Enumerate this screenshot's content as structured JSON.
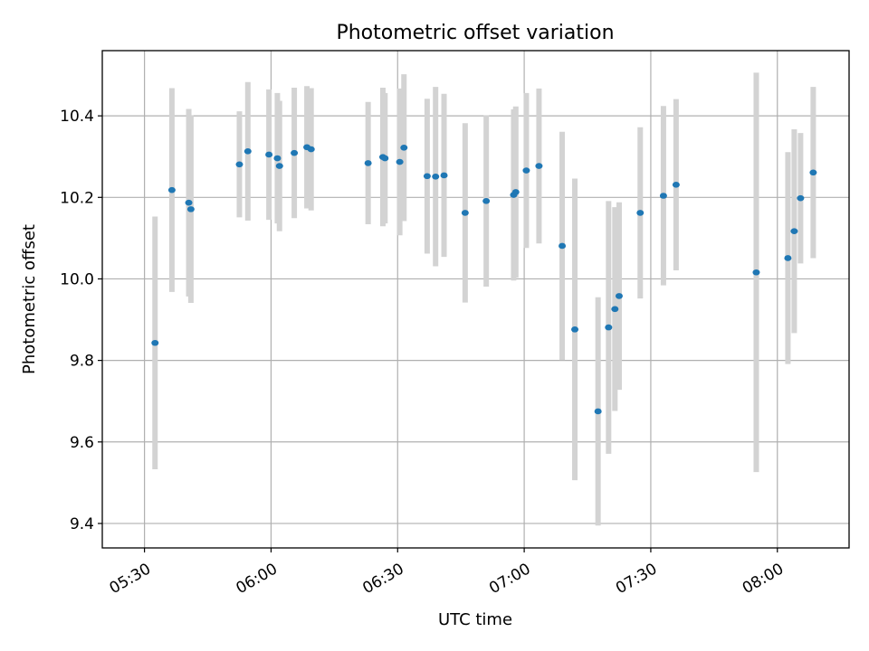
{
  "chart_data": {
    "type": "scatter",
    "title": "Photometric offset variation",
    "xlabel": "UTC time",
    "ylabel": "Photometric offset",
    "x_axis_type": "time",
    "xlim": [
      "05:20",
      "08:17"
    ],
    "ylim": [
      9.34,
      10.56
    ],
    "x_ticks": [
      "05:30",
      "06:00",
      "06:30",
      "07:00",
      "07:30",
      "08:00"
    ],
    "y_ticks": [
      9.4,
      9.6,
      9.8,
      10.0,
      10.2,
      10.4
    ],
    "grid": true,
    "colors": {
      "point": "#1f77b4",
      "errorbar": "#d3d3d3"
    },
    "points": [
      {
        "x": "05:32:30",
        "y": 9.843,
        "yerr": 0.31
      },
      {
        "x": "05:36:30",
        "y": 10.218,
        "yerr": 0.25
      },
      {
        "x": "05:40:30",
        "y": 10.187,
        "yerr": 0.23
      },
      {
        "x": "05:41:00",
        "y": 10.171,
        "yerr": 0.23
      },
      {
        "x": "05:52:30",
        "y": 10.281,
        "yerr": 0.13
      },
      {
        "x": "05:54:30",
        "y": 10.313,
        "yerr": 0.17
      },
      {
        "x": "05:59:30",
        "y": 10.305,
        "yerr": 0.16
      },
      {
        "x": "06:01:30",
        "y": 10.296,
        "yerr": 0.16
      },
      {
        "x": "06:02:00",
        "y": 10.277,
        "yerr": 0.16
      },
      {
        "x": "06:05:30",
        "y": 10.309,
        "yerr": 0.16
      },
      {
        "x": "06:08:30",
        "y": 10.323,
        "yerr": 0.15
      },
      {
        "x": "06:09:30",
        "y": 10.318,
        "yerr": 0.15
      },
      {
        "x": "06:23:00",
        "y": 10.284,
        "yerr": 0.15
      },
      {
        "x": "06:26:30",
        "y": 10.299,
        "yerr": 0.17
      },
      {
        "x": "06:27:00",
        "y": 10.296,
        "yerr": 0.16
      },
      {
        "x": "06:30:30",
        "y": 10.287,
        "yerr": 0.18
      },
      {
        "x": "06:31:30",
        "y": 10.322,
        "yerr": 0.18
      },
      {
        "x": "06:37:00",
        "y": 10.252,
        "yerr": 0.19
      },
      {
        "x": "06:39:00",
        "y": 10.251,
        "yerr": 0.22
      },
      {
        "x": "06:41:00",
        "y": 10.254,
        "yerr": 0.2
      },
      {
        "x": "06:46:00",
        "y": 10.162,
        "yerr": 0.22
      },
      {
        "x": "06:51:00",
        "y": 10.191,
        "yerr": 0.21
      },
      {
        "x": "06:57:30",
        "y": 10.206,
        "yerr": 0.21
      },
      {
        "x": "06:58:00",
        "y": 10.213,
        "yerr": 0.21
      },
      {
        "x": "07:00:30",
        "y": 10.266,
        "yerr": 0.19
      },
      {
        "x": "07:03:30",
        "y": 10.277,
        "yerr": 0.19
      },
      {
        "x": "07:09:00",
        "y": 10.081,
        "yerr": 0.28
      },
      {
        "x": "07:12:00",
        "y": 9.876,
        "yerr": 0.37
      },
      {
        "x": "07:17:30",
        "y": 9.675,
        "yerr": 0.28
      },
      {
        "x": "07:20:00",
        "y": 9.881,
        "yerr": 0.31
      },
      {
        "x": "07:21:30",
        "y": 9.926,
        "yerr": 0.25
      },
      {
        "x": "07:22:30",
        "y": 9.958,
        "yerr": 0.23
      },
      {
        "x": "07:27:30",
        "y": 10.162,
        "yerr": 0.21
      },
      {
        "x": "07:33:00",
        "y": 10.204,
        "yerr": 0.22
      },
      {
        "x": "07:36:00",
        "y": 10.231,
        "yerr": 0.21
      },
      {
        "x": "07:55:00",
        "y": 10.016,
        "yerr": 0.49
      },
      {
        "x": "08:02:30",
        "y": 10.051,
        "yerr": 0.26
      },
      {
        "x": "08:04:00",
        "y": 10.117,
        "yerr": 0.25
      },
      {
        "x": "08:05:30",
        "y": 10.198,
        "yerr": 0.16
      },
      {
        "x": "08:08:30",
        "y": 10.261,
        "yerr": 0.21
      }
    ]
  }
}
